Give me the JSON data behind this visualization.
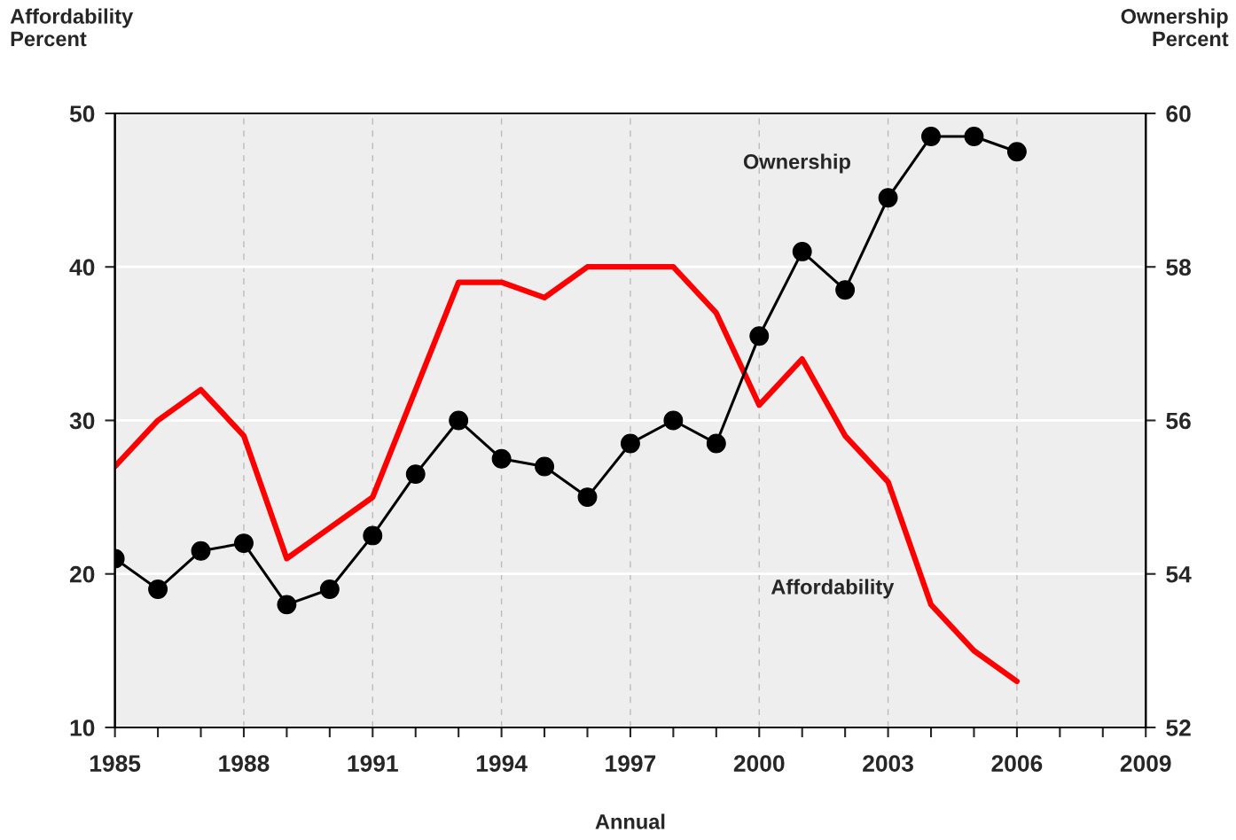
{
  "chart_data": {
    "type": "line",
    "xlabel": "Annual",
    "ylabel": "Affordability\nPercent",
    "y2label": "Ownership\nPercent",
    "x": [
      1985,
      1986,
      1987,
      1988,
      1989,
      1990,
      1991,
      1992,
      1993,
      1994,
      1995,
      1996,
      1997,
      1998,
      1999,
      2000,
      2001,
      2002,
      2003,
      2004,
      2005,
      2006
    ],
    "series": [
      {
        "name": "Affordability",
        "color": "#ff0000",
        "marker": "none",
        "values": [
          27,
          30,
          32,
          29,
          21,
          23,
          25,
          32,
          39,
          39,
          38,
          40,
          40,
          40,
          37,
          31,
          34,
          29,
          26,
          18,
          15,
          13
        ]
      },
      {
        "name": "Ownership",
        "color": "#000000",
        "marker": "circle",
        "axis": "y2",
        "values": [
          54.2,
          53.8,
          54.3,
          54.4,
          53.6,
          53.8,
          54.5,
          55.3,
          56.0,
          55.5,
          55.4,
          55.0,
          55.7,
          56.0,
          55.7,
          57.1,
          58.2,
          57.7,
          58.9,
          59.7,
          59.7,
          59.5
        ]
      }
    ],
    "xlim": [
      1985,
      2009
    ],
    "xticks": [
      1985,
      {
        "value": 1986,
        "label": null
      },
      {
        "value": 1987,
        "label": null
      },
      1988,
      {
        "value": 1989,
        "label": null
      },
      {
        "value": 1990,
        "label": null
      },
      1991,
      {
        "value": 1992,
        "label": null
      },
      {
        "value": 1993,
        "label": null
      },
      1994,
      {
        "value": 1995,
        "label": null
      },
      {
        "value": 1996,
        "label": null
      },
      1997,
      {
        "value": 1998,
        "label": null
      },
      {
        "value": 1999,
        "label": null
      },
      2000,
      {
        "value": 2001,
        "label": null
      },
      {
        "value": 2002,
        "label": null
      },
      2003,
      {
        "value": 2004,
        "label": null
      },
      {
        "value": 2005,
        "label": null
      },
      2006,
      {
        "value": 2007,
        "label": null
      },
      {
        "value": 2008,
        "label": null
      },
      2009
    ],
    "ylim": [
      10,
      50
    ],
    "yticks": [
      10,
      20,
      30,
      40,
      50
    ],
    "y2lim": [
      52,
      60
    ],
    "y2ticks": [
      52,
      54,
      56,
      58,
      60
    ],
    "grid": true,
    "line_style": "solid"
  }
}
